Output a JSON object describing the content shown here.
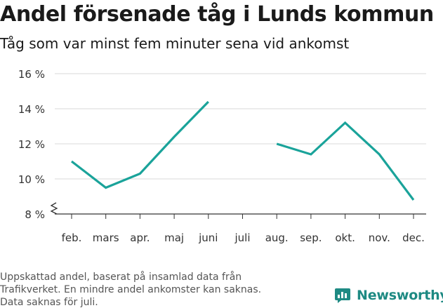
{
  "title": "Andel försenade tåg i Lunds kommun",
  "subtitle": "Tåg som var minst fem minuter sena vid ankomst",
  "footnote": [
    "Uppskattad andel, baserat på insamlad data från",
    "Trafikverket. En mindre andel ankomster kan saknas.",
    "Data saknas för juli."
  ],
  "logo": {
    "text": "Newsworthy",
    "icon": "newsworthy-logo-icon"
  },
  "colors": {
    "line": "#1aa39a",
    "grid": "#d9d9d9",
    "axis": "#333333",
    "brand": "#1e8a83"
  },
  "chart_data": {
    "type": "line",
    "categories": [
      "feb.",
      "mars",
      "apr.",
      "maj",
      "juni",
      "juli",
      "aug.",
      "sep.",
      "okt.",
      "nov.",
      "dec."
    ],
    "series": [
      {
        "values": [
          11.0,
          9.5,
          10.3,
          12.4,
          14.4,
          null,
          12.0,
          11.4,
          13.2,
          11.4,
          8.8
        ]
      }
    ],
    "yticks": [
      8,
      10,
      12,
      14,
      16
    ],
    "ytick_labels": [
      "8 %",
      "10 %",
      "12 %",
      "14 %",
      "16 %"
    ],
    "ylim": [
      8,
      16
    ],
    "broken_axis": true,
    "grid": true,
    "xlabel": "",
    "ylabel": ""
  }
}
